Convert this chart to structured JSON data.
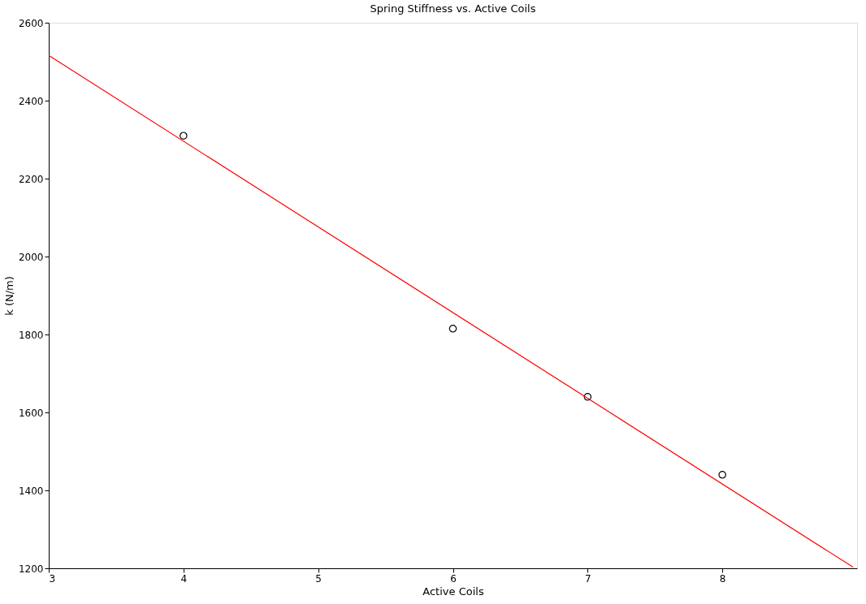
{
  "chart_data": {
    "type": "scatter",
    "title": "Spring Stiffness vs. Active Coils",
    "xlabel": "Active Coils",
    "ylabel": "k (N/m)",
    "x": [
      4,
      6,
      7,
      8
    ],
    "series": [
      {
        "color": "#000000",
        "marker": "circle",
        "values": [
          2310,
          1815,
          1640,
          1440
        ]
      },
      {
        "type": "line",
        "color": "#ff0000",
        "x": [
          3,
          8.97
        ],
        "values": [
          2516,
          1203
        ],
        "line_style": "solid"
      }
    ],
    "xlim": [
      3,
      9
    ],
    "xticks": [
      3,
      4,
      5,
      6,
      7,
      8
    ],
    "ylim": [
      1200,
      2600
    ],
    "yticks": [
      1200,
      1400,
      1600,
      1800,
      2000,
      2200,
      2400,
      2600
    ],
    "grid": false
  }
}
